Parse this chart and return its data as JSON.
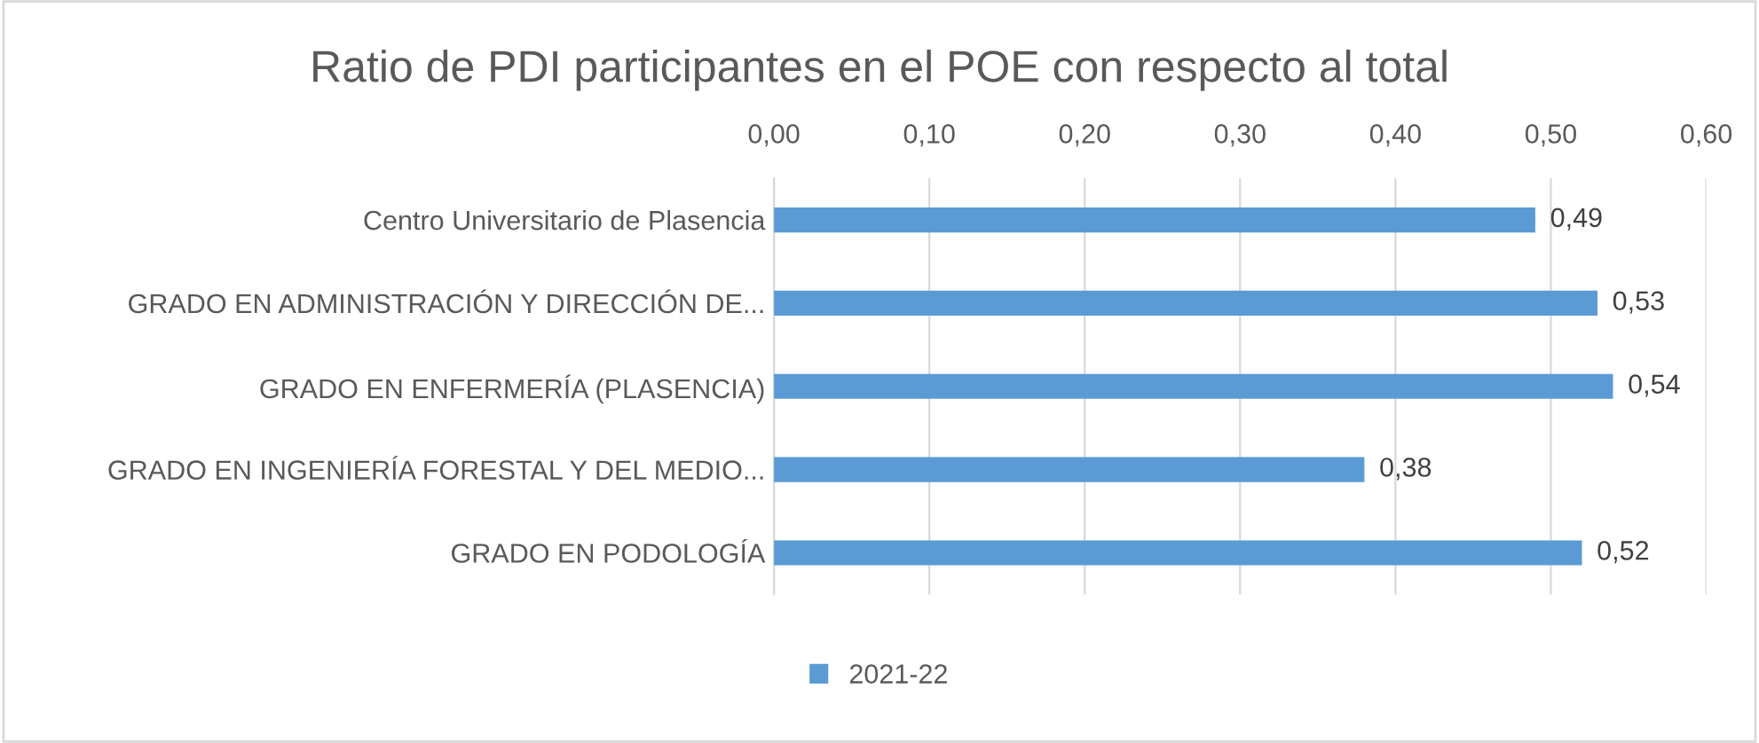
{
  "chart_data": {
    "type": "bar",
    "orientation": "horizontal",
    "title": "Ratio de PDI participantes en el POE con respecto al total",
    "categories": [
      "Centro Universitario de Plasencia",
      "GRADO EN ADMINISTRACIÓN Y DIRECCIÓN DE...",
      "GRADO EN ENFERMERÍA (PLASENCIA)",
      "GRADO EN INGENIERÍA FORESTAL Y DEL MEDIO...",
      "GRADO EN PODOLOGÍA"
    ],
    "series": [
      {
        "name": "2021-22",
        "color": "#5b9bd5",
        "values": [
          0.49,
          0.53,
          0.54,
          0.38,
          0.52
        ],
        "value_labels": [
          "0,49",
          "0,53",
          "0,54",
          "0,38",
          "0,52"
        ]
      }
    ],
    "xlim": [
      0,
      0.6
    ],
    "xticks": [
      {
        "value": 0,
        "label": "0,00"
      },
      {
        "value": 0.1,
        "label": "0,10"
      },
      {
        "value": 0.2,
        "label": "0,20"
      },
      {
        "value": 0.3,
        "label": "0,30"
      },
      {
        "value": 0.4,
        "label": "0,40"
      },
      {
        "value": 0.5,
        "label": "0,50"
      },
      {
        "value": 0.6,
        "label": "0,60"
      }
    ],
    "grid": "x",
    "legend": "bottom"
  }
}
